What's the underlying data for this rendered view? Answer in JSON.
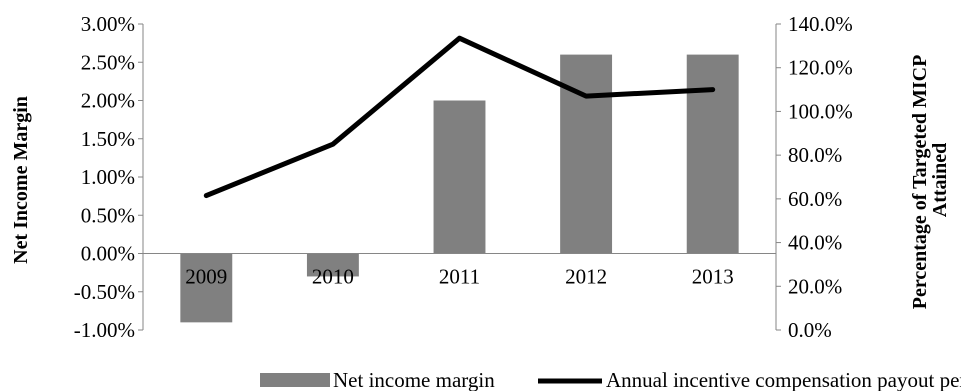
{
  "chart_data": {
    "type": "bar",
    "categories": [
      "2009",
      "2010",
      "2011",
      "2012",
      "2013"
    ],
    "series": [
      {
        "name": "Net income margin",
        "type": "bar",
        "axis": "left",
        "color": "#808080",
        "values": [
          -0.009,
          -0.003,
          0.02,
          0.026,
          0.026
        ]
      },
      {
        "name": "Annual incentive compensation payout percentage",
        "type": "line",
        "axis": "right",
        "color": "#000000",
        "values": [
          0.615,
          0.85,
          1.335,
          1.07,
          1.1
        ]
      }
    ],
    "ylabel": "Net  Income Margin",
    "y2label_lines": [
      "Percentage of Targeted MICP",
      "Attained"
    ],
    "ylim": [
      -0.01,
      0.03
    ],
    "y2lim": [
      0.0,
      1.4
    ],
    "yticks": [
      "3.00%",
      "2.50%",
      "2.00%",
      "1.50%",
      "1.00%",
      "0.50%",
      "0.00%",
      "-0.50%",
      "-1.00%"
    ],
    "y2ticks": [
      "140.0%",
      "120.0%",
      "100.0%",
      "80.0%",
      "60.0%",
      "40.0%",
      "20.0%",
      "0.0%"
    ],
    "grid": false,
    "legend_position": "bottom"
  }
}
